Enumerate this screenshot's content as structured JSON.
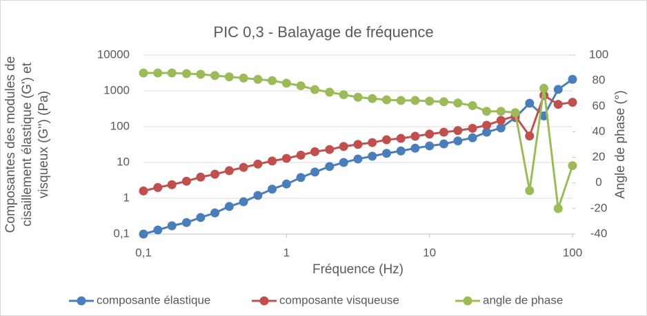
{
  "chart_data": {
    "type": "line",
    "title": "PIC 0,3 - Balayage de fréquence",
    "xlabel": "Fréquence (Hz)",
    "ylabel": [
      "Composantes des modules de",
      "cisaillement élastique (G') et",
      "visqueux (G'') (Pa)"
    ],
    "y2label": "Angle de phase (°)",
    "xscale": "log",
    "yscale": "log",
    "xlim": [
      0.1,
      100
    ],
    "xticks": [
      {
        "value": 0.1,
        "label": "0,1"
      },
      1,
      10,
      100
    ],
    "ylim": [
      0.1,
      10000
    ],
    "yticks": [
      {
        "value": 0.1,
        "label": "0,1"
      },
      1,
      10,
      100,
      1000,
      10000
    ],
    "y2lim": [
      -40,
      100
    ],
    "y2ticks": [
      -40,
      -20,
      0,
      20,
      40,
      60,
      80,
      100
    ],
    "grid": true,
    "legend": "bottom",
    "x": [
      0.1,
      0.126,
      0.158,
      0.2,
      0.251,
      0.316,
      0.398,
      0.501,
      0.631,
      0.794,
      1,
      1.26,
      1.58,
      2,
      2.51,
      3.16,
      3.98,
      5.01,
      6.31,
      7.94,
      10,
      12.6,
      15.8,
      20,
      25.1,
      31.6,
      39.8,
      50.1,
      63.1,
      79.4,
      100
    ],
    "series": [
      {
        "name": "composante élastique",
        "color": "#4a7ebb",
        "axis": "y",
        "values": [
          0.1,
          0.13,
          0.17,
          0.21,
          0.29,
          0.39,
          0.59,
          0.8,
          1.2,
          1.8,
          2.5,
          3.8,
          5.4,
          7.7,
          10,
          12.5,
          15,
          18,
          21,
          25,
          29,
          33,
          40,
          49,
          70,
          92,
          180,
          450,
          200,
          1100,
          2100
        ]
      },
      {
        "name": "composante visqueuse",
        "color": "#c0504d",
        "axis": "y",
        "values": [
          1.6,
          2,
          2.4,
          3,
          3.9,
          4.7,
          5.9,
          7.3,
          9,
          11,
          13,
          16,
          20,
          23,
          28,
          32,
          36,
          43,
          47,
          54,
          62,
          70,
          78,
          90,
          110,
          150,
          200,
          55,
          750,
          420,
          480
        ]
      },
      {
        "name": "angle de phase",
        "color": "#9bbb59",
        "axis": "y2",
        "values": [
          86,
          86,
          86,
          85.5,
          85,
          84,
          83,
          82,
          81,
          80,
          78,
          76,
          73,
          71,
          69,
          67,
          66,
          65,
          64.5,
          64.5,
          64,
          63.5,
          62.5,
          60.5,
          56,
          56,
          55,
          -6,
          74,
          -20,
          13.5
        ]
      }
    ]
  }
}
